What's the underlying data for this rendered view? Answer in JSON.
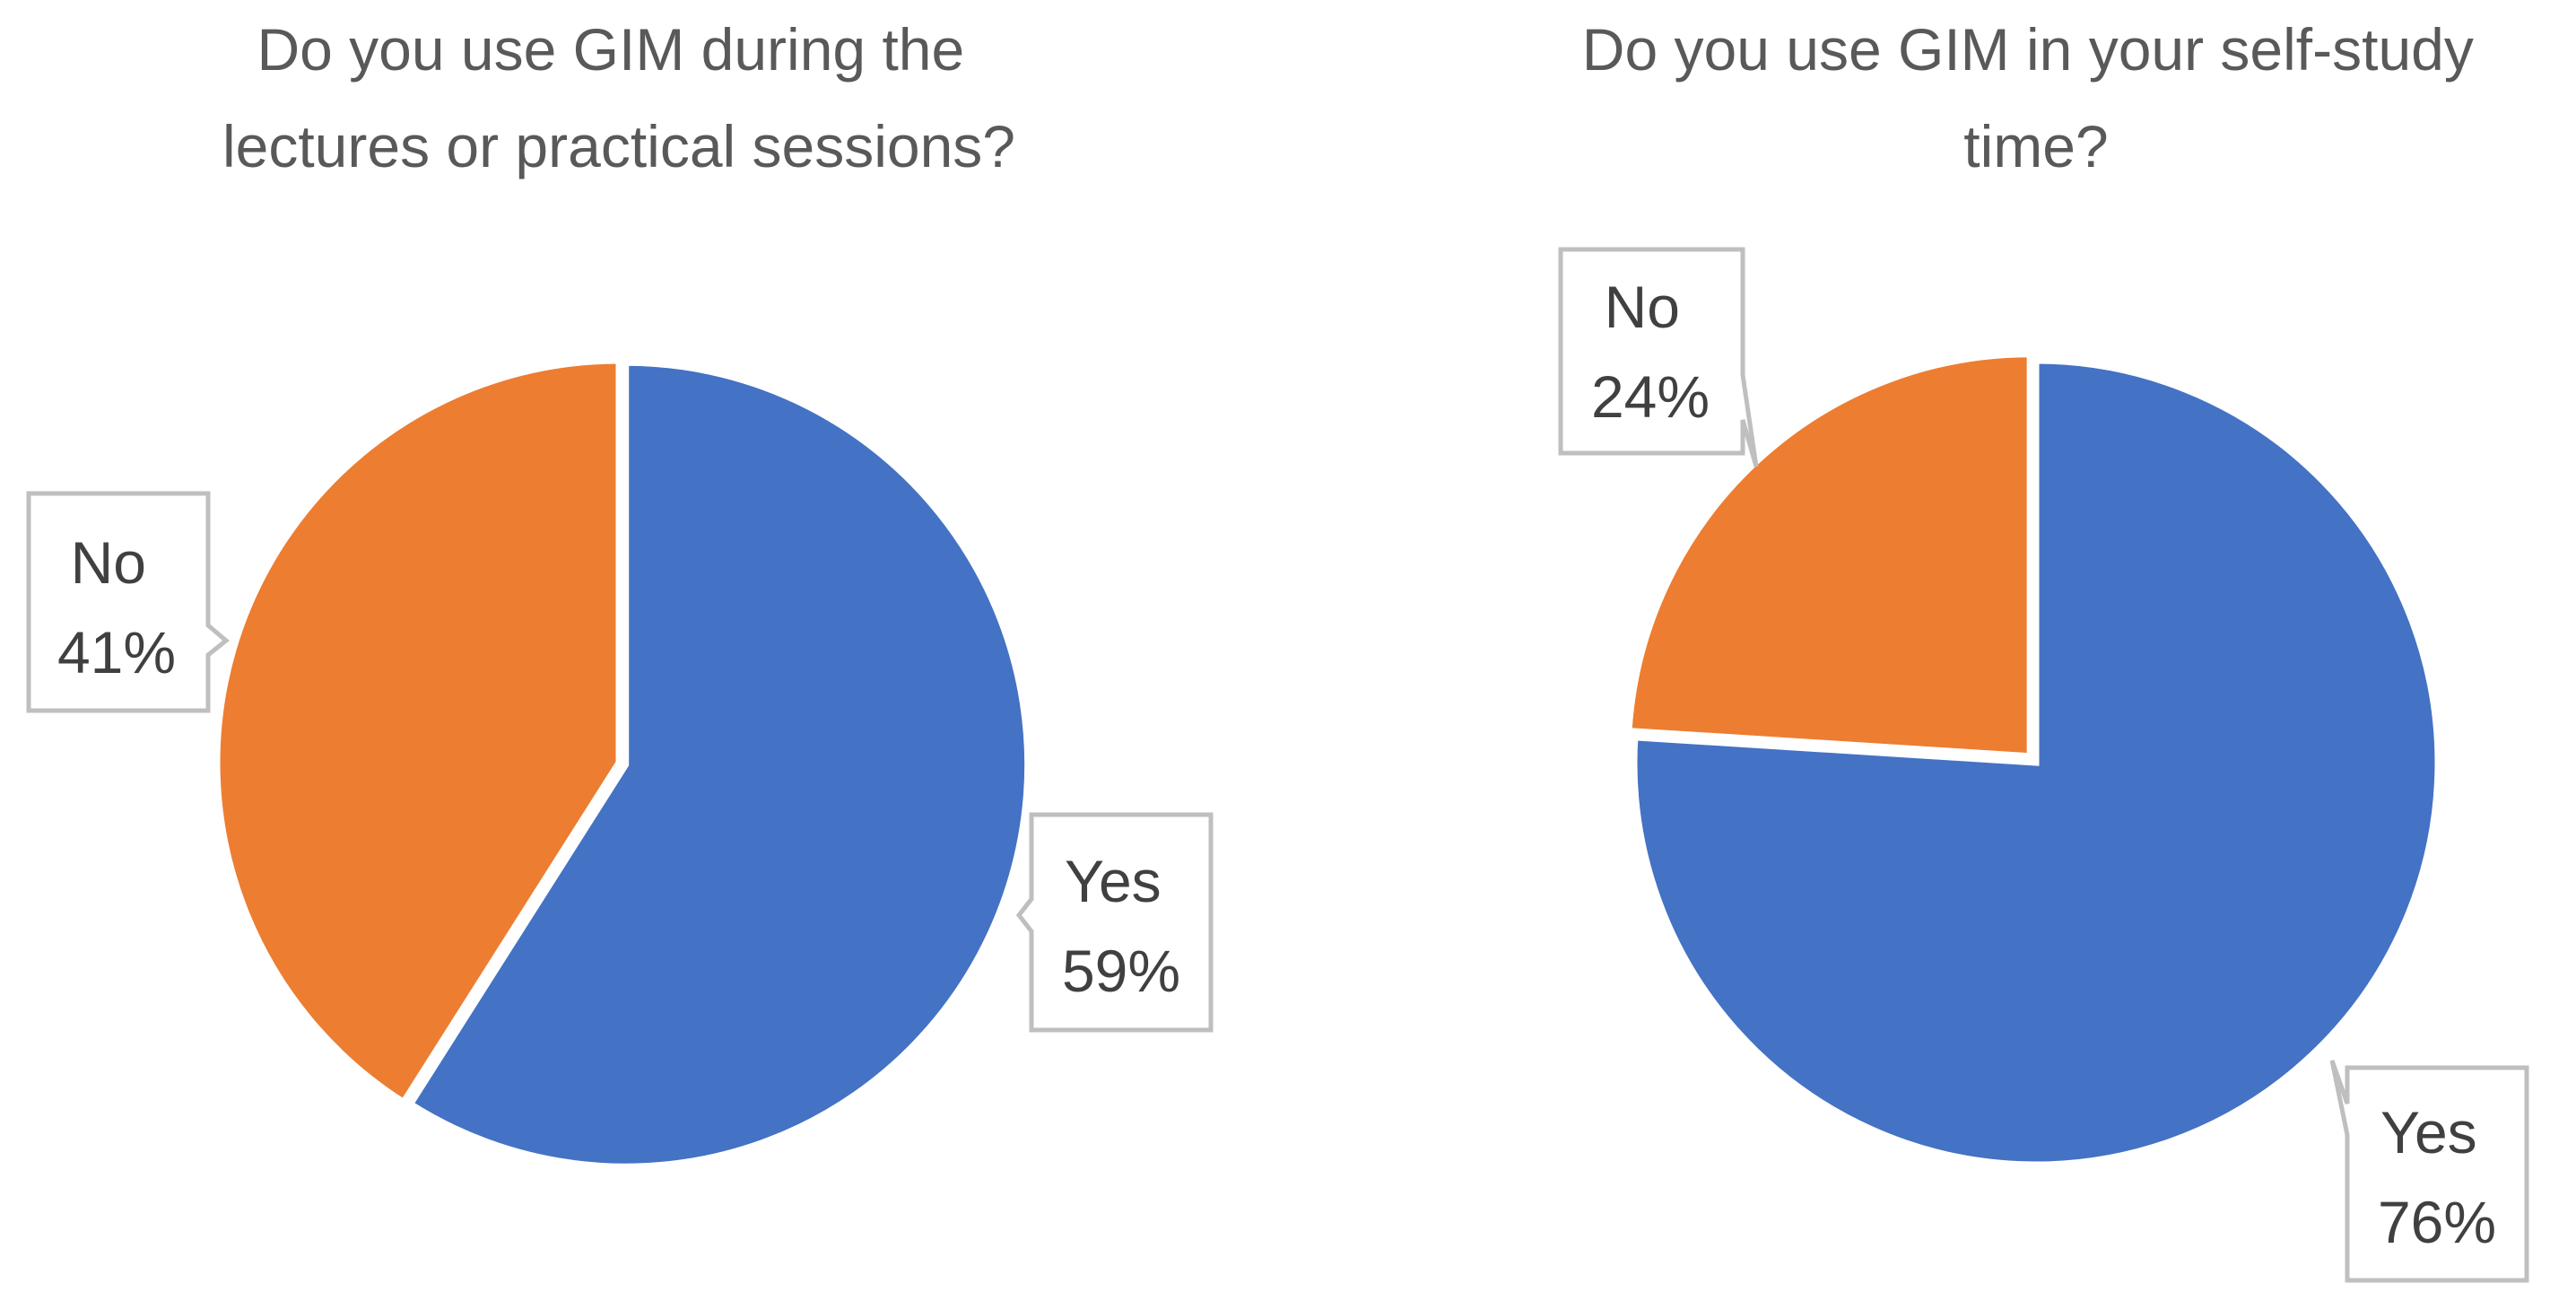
{
  "chart_data": [
    {
      "type": "pie",
      "title": "Do you use GIM during the lectures or practical sessions?",
      "title_lines": [
        "Do you use GIM during the",
        "lectures or practical sessions?"
      ],
      "slices": [
        {
          "label": "Yes",
          "value": 59,
          "display": "59%",
          "color": "#4472C4"
        },
        {
          "label": "No",
          "value": 41,
          "display": "41%",
          "color": "#ED7D31"
        }
      ],
      "data_labels": "category and percentage in callouts",
      "legend": "none"
    },
    {
      "type": "pie",
      "title": "Do you use GIM in your self-study time?",
      "title_lines": [
        "Do you use GIM in your self-study",
        "time?"
      ],
      "slices": [
        {
          "label": "Yes",
          "value": 76,
          "display": "76%",
          "color": "#4472C4"
        },
        {
          "label": "No",
          "value": 24,
          "display": "24%",
          "color": "#ED7D31"
        }
      ],
      "data_labels": "category and percentage in callouts",
      "legend": "none"
    }
  ]
}
